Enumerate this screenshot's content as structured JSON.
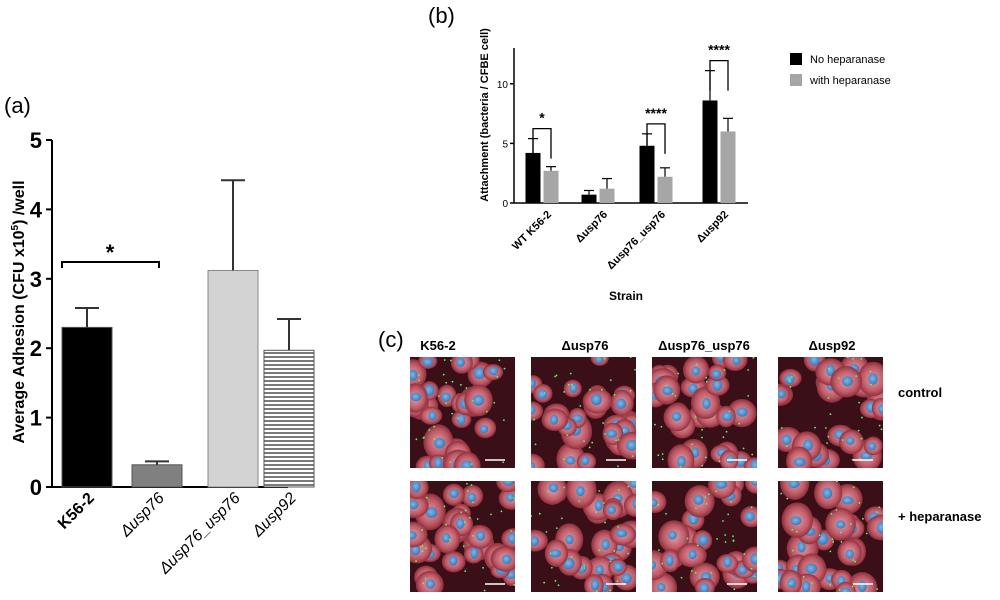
{
  "panel_labels": {
    "a": "(a)",
    "b": "(b)",
    "c": "(c)"
  },
  "chart_data": [
    {
      "panel": "a",
      "type": "bar",
      "ylabel": "Average Adhesion (CFU x10",
      "ylabel_sup": "5",
      "ylabel_tail": ") /well",
      "ylim": [
        0,
        5
      ],
      "yticks": [
        "0",
        "1",
        "2",
        "3",
        "4",
        "5"
      ],
      "categories": [
        "K56-2",
        "Δusp76",
        "Δusp76_usp76",
        "Δusp92"
      ],
      "values": [
        2.3,
        0.32,
        3.12,
        1.97
      ],
      "errors": [
        0.28,
        0.05,
        1.3,
        0.45
      ],
      "fills": [
        "#000000",
        "#808080",
        "#d3d3d3",
        "striped"
      ],
      "significance": [
        {
          "from": 0,
          "to": 1,
          "label": "*"
        }
      ]
    },
    {
      "panel": "b",
      "type": "bar",
      "ylabel": "Attachment (bacteria / CFBE cell)",
      "xlabel": "Strain",
      "ylim": [
        0,
        13
      ],
      "yticks": [
        "0",
        "5",
        "10"
      ],
      "categories": [
        "WT K56-2",
        "Δusp76",
        "Δusp76_usp76",
        "Δusp92"
      ],
      "legend_position": "top-right",
      "series": [
        {
          "name": "No heparanase",
          "color": "#000000",
          "values": [
            4.2,
            0.7,
            4.8,
            8.6
          ],
          "errors": [
            1.2,
            0.35,
            1.0,
            2.5
          ]
        },
        {
          "name": "with heparanase",
          "color": "#a6a6a6",
          "values": [
            2.7,
            1.2,
            2.2,
            6.0
          ],
          "errors": [
            0.35,
            0.85,
            0.75,
            1.1
          ]
        }
      ],
      "significance": [
        {
          "category": 0,
          "label": "*"
        },
        {
          "category": 2,
          "label": "****"
        },
        {
          "category": 3,
          "label": "****"
        }
      ]
    }
  ],
  "micrographs": {
    "columns": [
      "K56-2",
      "Δusp76",
      "Δusp76_usp76",
      "Δusp92"
    ],
    "rows": [
      "control",
      "+ heparanase"
    ]
  }
}
